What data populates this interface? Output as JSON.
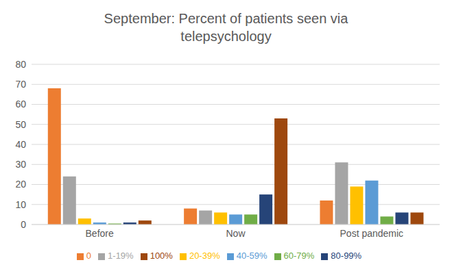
{
  "chart_data": {
    "type": "bar",
    "title": "September:  Percent of patients seen via telepsychology",
    "categories": [
      "Before",
      "Now",
      "Post pandemic"
    ],
    "series": [
      {
        "name": "0",
        "color": "#ED7D31",
        "values": [
          68,
          8,
          12
        ]
      },
      {
        "name": "1-19%",
        "color": "#A5A5A5",
        "values": [
          24,
          7,
          31
        ]
      },
      {
        "name": "20-39%",
        "color": "#FFC000",
        "values": [
          3,
          6,
          19
        ]
      },
      {
        "name": "40-59%",
        "color": "#5B9BD5",
        "values": [
          1,
          5,
          22
        ]
      },
      {
        "name": "60-79%",
        "color": "#70AD47",
        "values": [
          0.5,
          5,
          4
        ]
      },
      {
        "name": "80-99%",
        "color": "#264478",
        "values": [
          1,
          15,
          6
        ]
      },
      {
        "name": "100%",
        "color": "#9E480E",
        "values": [
          2,
          53,
          6
        ]
      }
    ],
    "ylim": [
      0,
      80
    ],
    "yticks": [
      0,
      10,
      20,
      30,
      40,
      50,
      60,
      70,
      80
    ],
    "grid": true,
    "legend": "bottom"
  }
}
